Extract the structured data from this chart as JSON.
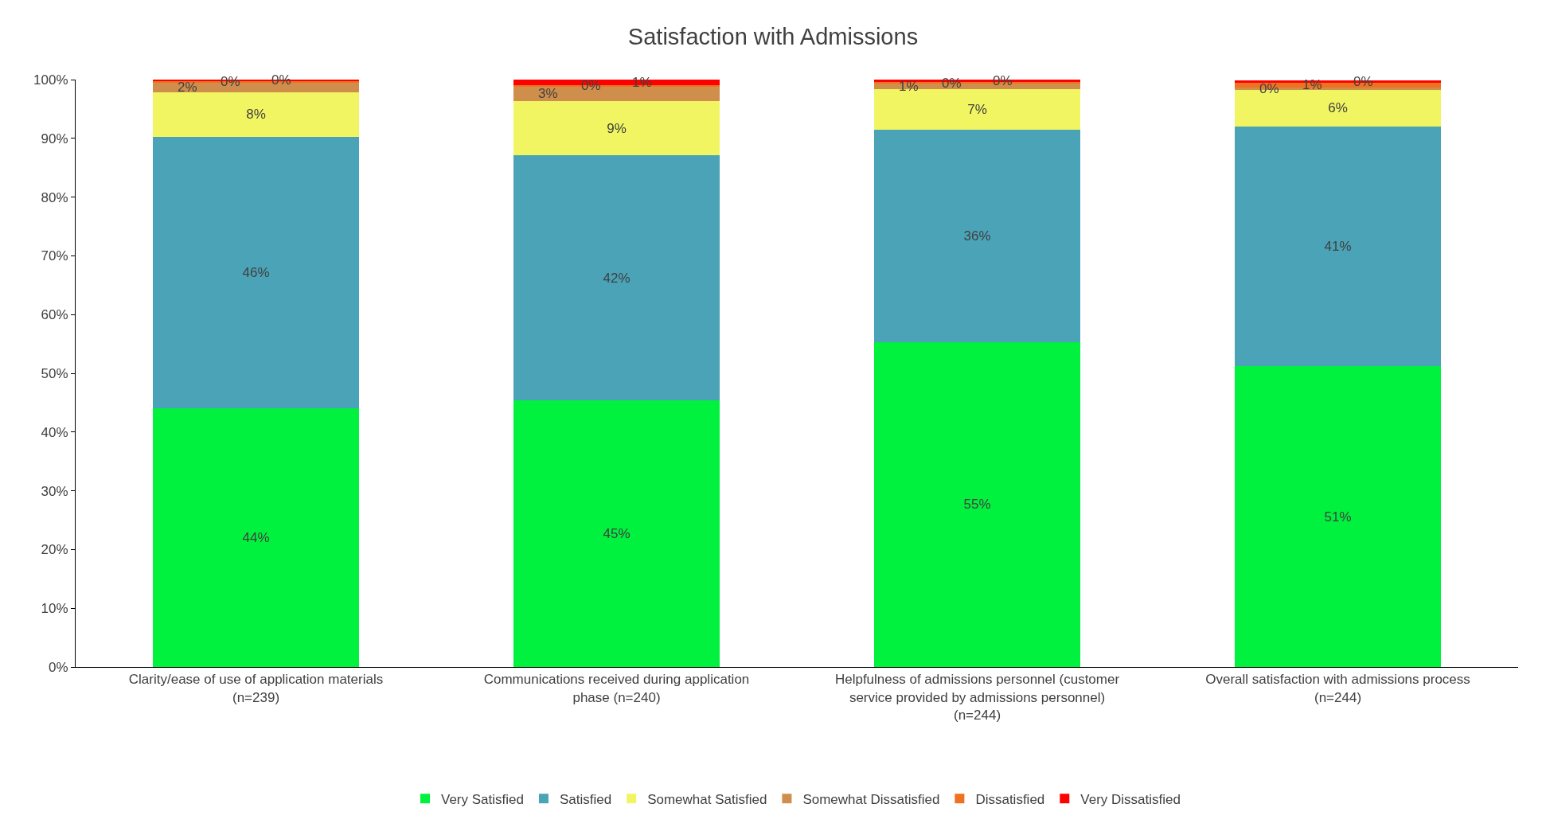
{
  "chart_data": {
    "type": "bar",
    "title": "Satisfaction with Admissions",
    "stacked": true,
    "categories": [
      "Clarity/ease of use of application materials (n=239)",
      "Communications received during application phase (n=240)",
      "Helpfulness of admissions personnel (customer service provided by admissions personnel) (n=244)",
      "Overall satisfaction with admissions process (n=244)"
    ],
    "series": [
      {
        "name": "Very Satisfied",
        "color": "#00f23e",
        "values": [
          44.1,
          45.4,
          55.3,
          51.2
        ],
        "value_labels": [
          "44%",
          "45%",
          "55%",
          "51%"
        ]
      },
      {
        "name": "Satisfied",
        "color": "#4ba3b8",
        "values": [
          46.2,
          41.7,
          36.1,
          40.8
        ],
        "value_labels": [
          "46%",
          "42%",
          "36%",
          "41%"
        ]
      },
      {
        "name": "Somewhat Satisfied",
        "color": "#f2f562",
        "values": [
          7.6,
          9.2,
          7.0,
          6.3
        ],
        "value_labels": [
          "8%",
          "9%",
          "7%",
          "6%"
        ]
      },
      {
        "name": "Somewhat Dissatisfied",
        "color": "#d08e4c",
        "values": [
          1.6,
          2.6,
          0.9,
          0.4
        ],
        "value_labels": [
          "2%",
          "3%",
          "1%",
          "0%"
        ]
      },
      {
        "name": "Dissatisfied",
        "color": "#ee7220",
        "values": [
          0.3,
          0.2,
          0.3,
          0.8
        ],
        "value_labels": [
          "0%",
          "0%",
          "0%",
          "1%"
        ]
      },
      {
        "name": "Very Dissatisfied",
        "color": "#ff0000",
        "values": [
          0.2,
          0.9,
          0.4,
          0.3
        ],
        "value_labels": [
          "0%",
          "1%",
          "0%",
          "0%"
        ]
      }
    ],
    "ylim": [
      0,
      100
    ],
    "yticks": [
      {
        "value": 0,
        "label": "0%"
      },
      {
        "value": 10,
        "label": "10%"
      },
      {
        "value": 20,
        "label": "20%"
      },
      {
        "value": 30,
        "label": "30%"
      },
      {
        "value": 40,
        "label": "40%"
      },
      {
        "value": 50,
        "label": "50%"
      },
      {
        "value": 60,
        "label": "60%"
      },
      {
        "value": 70,
        "label": "70%"
      },
      {
        "value": 80,
        "label": "80%"
      },
      {
        "value": 90,
        "label": "90%"
      },
      {
        "value": 100,
        "label": "100%"
      }
    ],
    "legend": "bottom"
  }
}
